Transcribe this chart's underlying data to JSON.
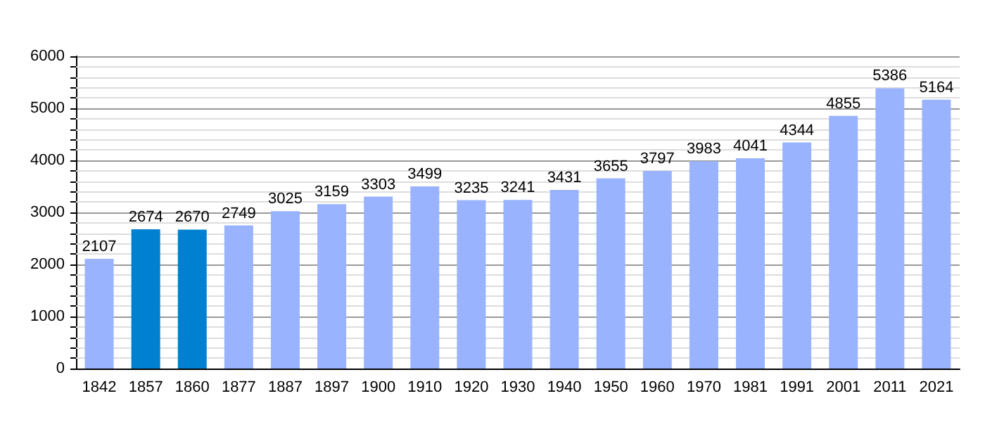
{
  "chart_data": {
    "type": "bar",
    "categories": [
      "1842",
      "1857",
      "1860",
      "1877",
      "1887",
      "1897",
      "1900",
      "1910",
      "1920",
      "1930",
      "1940",
      "1950",
      "1960",
      "1970",
      "1981",
      "1991",
      "2001",
      "2011",
      "2021"
    ],
    "values": [
      2107,
      2674,
      2670,
      2749,
      3025,
      3159,
      3303,
      3499,
      3235,
      3241,
      3431,
      3655,
      3797,
      3983,
      4041,
      4344,
      4855,
      5386,
      5164
    ],
    "colors": [
      "#99b3ff",
      "#0080d0",
      "#0080d0",
      "#99b3ff",
      "#99b3ff",
      "#99b3ff",
      "#99b3ff",
      "#99b3ff",
      "#99b3ff",
      "#99b3ff",
      "#99b3ff",
      "#99b3ff",
      "#99b3ff",
      "#99b3ff",
      "#99b3ff",
      "#99b3ff",
      "#99b3ff",
      "#99b3ff",
      "#99b3ff"
    ],
    "ylim": [
      0,
      6000
    ],
    "yticks": [
      0,
      {
        "value": 200,
        "label": null
      },
      {
        "value": 400,
        "label": null
      },
      {
        "value": 600,
        "label": null
      },
      {
        "value": 800,
        "label": null
      },
      1000,
      {
        "value": 1200,
        "label": null
      },
      {
        "value": 1400,
        "label": null
      },
      {
        "value": 1600,
        "label": null
      },
      {
        "value": 1800,
        "label": null
      },
      2000,
      {
        "value": 2200,
        "label": null
      },
      {
        "value": 2400,
        "label": null
      },
      {
        "value": 2600,
        "label": null
      },
      {
        "value": 2800,
        "label": null
      },
      3000,
      {
        "value": 3200,
        "label": null
      },
      {
        "value": 3400,
        "label": null
      },
      {
        "value": 3600,
        "label": null
      },
      {
        "value": 3800,
        "label": null
      },
      4000,
      {
        "value": 4200,
        "label": null
      },
      {
        "value": 4400,
        "label": null
      },
      {
        "value": 4600,
        "label": null
      },
      {
        "value": 4800,
        "label": null
      },
      5000,
      {
        "value": 5200,
        "label": null
      },
      {
        "value": 5400,
        "label": null
      },
      {
        "value": 5600,
        "label": null
      },
      {
        "value": 5800,
        "label": null
      },
      6000
    ],
    "grid": "y",
    "data_labels": true
  }
}
